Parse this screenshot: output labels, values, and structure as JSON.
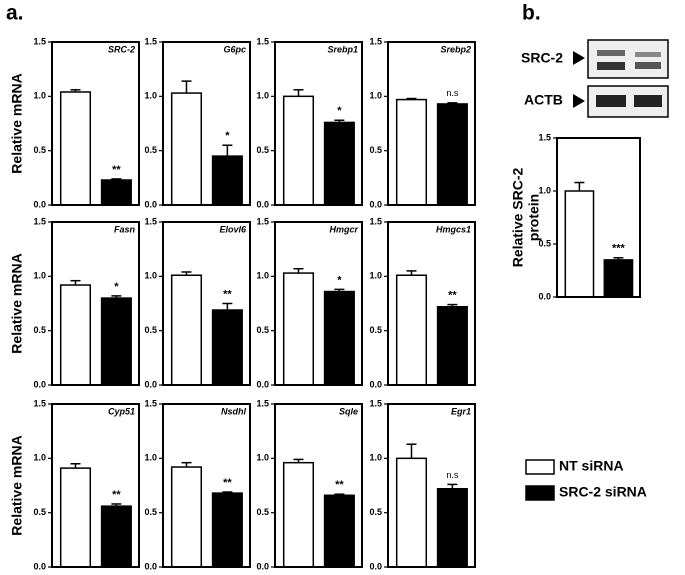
{
  "panel_labels": [
    "a.",
    "b."
  ],
  "blots": [
    {
      "label": "SRC-2"
    },
    {
      "label": "ACTB"
    }
  ],
  "legend": {
    "entries": [
      {
        "name": "NT siRNA",
        "color": "#ffffff"
      },
      {
        "name": "SRC-2 siRNA",
        "color": "#000000"
      }
    ]
  },
  "chart_data": [
    {
      "type": "bar",
      "title": "SRC-2",
      "ylabel": "Relative mRNA",
      "categories": [
        null,
        null
      ],
      "values": [
        1.04,
        0.23
      ],
      "errors": [
        0.02,
        0.01
      ],
      "annotations": [
        null,
        "**"
      ],
      "ylim": [
        0,
        1.5
      ],
      "yticks": [
        {
          "value": 0,
          "label": "0.0"
        },
        0.5,
        {
          "value": 1,
          "label": "1.0"
        },
        1.5
      ]
    },
    {
      "type": "bar",
      "title": "G6pc",
      "categories": [
        null,
        null
      ],
      "values": [
        1.03,
        0.45
      ],
      "errors": [
        0.11,
        0.1
      ],
      "annotations": [
        null,
        "*"
      ],
      "ylim": [
        0,
        1.5
      ],
      "yticks": [
        {
          "value": 0,
          "label": "0.0"
        },
        0.5,
        {
          "value": 1,
          "label": "1.0"
        },
        1.5
      ]
    },
    {
      "type": "bar",
      "title": "Srebp1",
      "categories": [
        null,
        null
      ],
      "values": [
        1.0,
        0.76
      ],
      "errors": [
        0.06,
        0.02
      ],
      "annotations": [
        null,
        "*"
      ],
      "ylim": [
        0,
        1.5
      ],
      "yticks": [
        {
          "value": 0,
          "label": "0.0"
        },
        0.5,
        {
          "value": 1,
          "label": "1.0"
        },
        1.5
      ]
    },
    {
      "type": "bar",
      "title": "Srebp2",
      "categories": [
        null,
        null
      ],
      "values": [
        0.97,
        0.93
      ],
      "errors": [
        0.01,
        0.01
      ],
      "annotations": [
        null,
        "n.s"
      ],
      "ylim": [
        0,
        1.5
      ],
      "yticks": [
        {
          "value": 0,
          "label": "0.0"
        },
        0.5,
        {
          "value": 1,
          "label": "1.0"
        },
        1.5
      ]
    },
    {
      "type": "bar",
      "title": "Fasn",
      "ylabel": "Relative mRNA",
      "categories": [
        null,
        null
      ],
      "values": [
        0.92,
        0.8
      ],
      "errors": [
        0.04,
        0.02
      ],
      "annotations": [
        null,
        "*"
      ],
      "ylim": [
        0,
        1.5
      ],
      "yticks": [
        {
          "value": 0,
          "label": "0.0"
        },
        0.5,
        {
          "value": 1,
          "label": "1.0"
        },
        1.5
      ]
    },
    {
      "type": "bar",
      "title": "Elovl6",
      "categories": [
        null,
        null
      ],
      "values": [
        1.01,
        0.69
      ],
      "errors": [
        0.03,
        0.06
      ],
      "annotations": [
        null,
        "**"
      ],
      "ylim": [
        0,
        1.5
      ],
      "yticks": [
        {
          "value": 0,
          "label": "0.0"
        },
        0.5,
        {
          "value": 1,
          "label": "1.0"
        },
        1.5
      ]
    },
    {
      "type": "bar",
      "title": "Hmgcr",
      "categories": [
        null,
        null
      ],
      "values": [
        1.03,
        0.86
      ],
      "errors": [
        0.04,
        0.02
      ],
      "annotations": [
        null,
        "*"
      ],
      "ylim": [
        0,
        1.5
      ],
      "yticks": [
        {
          "value": 0,
          "label": "0.0"
        },
        0.5,
        {
          "value": 1,
          "label": "1.0"
        },
        1.5
      ]
    },
    {
      "type": "bar",
      "title": "Hmgcs1",
      "categories": [
        null,
        null
      ],
      "values": [
        1.01,
        0.72
      ],
      "errors": [
        0.04,
        0.02
      ],
      "annotations": [
        null,
        "**"
      ],
      "ylim": [
        0,
        1.5
      ],
      "yticks": [
        {
          "value": 0,
          "label": "0.0"
        },
        0.5,
        {
          "value": 1,
          "label": "1.0"
        },
        1.5
      ]
    },
    {
      "type": "bar",
      "title": "Cyp51",
      "ylabel": "Relative mRNA",
      "categories": [
        null,
        null
      ],
      "values": [
        0.91,
        0.56
      ],
      "errors": [
        0.04,
        0.02
      ],
      "annotations": [
        null,
        "**"
      ],
      "ylim": [
        0,
        1.5
      ],
      "yticks": [
        {
          "value": 0,
          "label": "0.0"
        },
        0.5,
        {
          "value": 1,
          "label": "1.0"
        },
        1.5
      ]
    },
    {
      "type": "bar",
      "title": "Nsdhl",
      "categories": [
        null,
        null
      ],
      "values": [
        0.92,
        0.68
      ],
      "errors": [
        0.04,
        0.01
      ],
      "annotations": [
        null,
        "**"
      ],
      "ylim": [
        0,
        1.5
      ],
      "yticks": [
        {
          "value": 0,
          "label": "0.0"
        },
        0.5,
        {
          "value": 1,
          "label": "1.0"
        },
        1.5
      ]
    },
    {
      "type": "bar",
      "title": "Sqle",
      "categories": [
        null,
        null
      ],
      "values": [
        0.96,
        0.66
      ],
      "errors": [
        0.03,
        0.01
      ],
      "annotations": [
        null,
        "**"
      ],
      "ylim": [
        0,
        1.5
      ],
      "yticks": [
        {
          "value": 0,
          "label": "0.0"
        },
        0.5,
        {
          "value": 1,
          "label": "1.0"
        },
        1.5
      ]
    },
    {
      "type": "bar",
      "title": "Egr1",
      "categories": [
        null,
        null
      ],
      "values": [
        1.0,
        0.72
      ],
      "errors": [
        0.13,
        0.04
      ],
      "annotations": [
        null,
        "n.s"
      ],
      "ylim": [
        0,
        1.5
      ],
      "yticks": [
        {
          "value": 0,
          "label": "0.0"
        },
        0.5,
        {
          "value": 1,
          "label": "1.0"
        },
        1.5
      ]
    },
    {
      "type": "bar",
      "ylabel": [
        "Relative SRC-2",
        "protein"
      ],
      "categories": [
        null,
        null
      ],
      "values": [
        1.0,
        0.35
      ],
      "errors": [
        0.08,
        0.02
      ],
      "annotations": [
        null,
        "***"
      ],
      "ylim": [
        0,
        1.5
      ],
      "yticks": [
        {
          "value": 0,
          "label": "0.0"
        },
        0.5,
        {
          "value": 1,
          "label": "1.0"
        },
        1.5
      ]
    }
  ]
}
